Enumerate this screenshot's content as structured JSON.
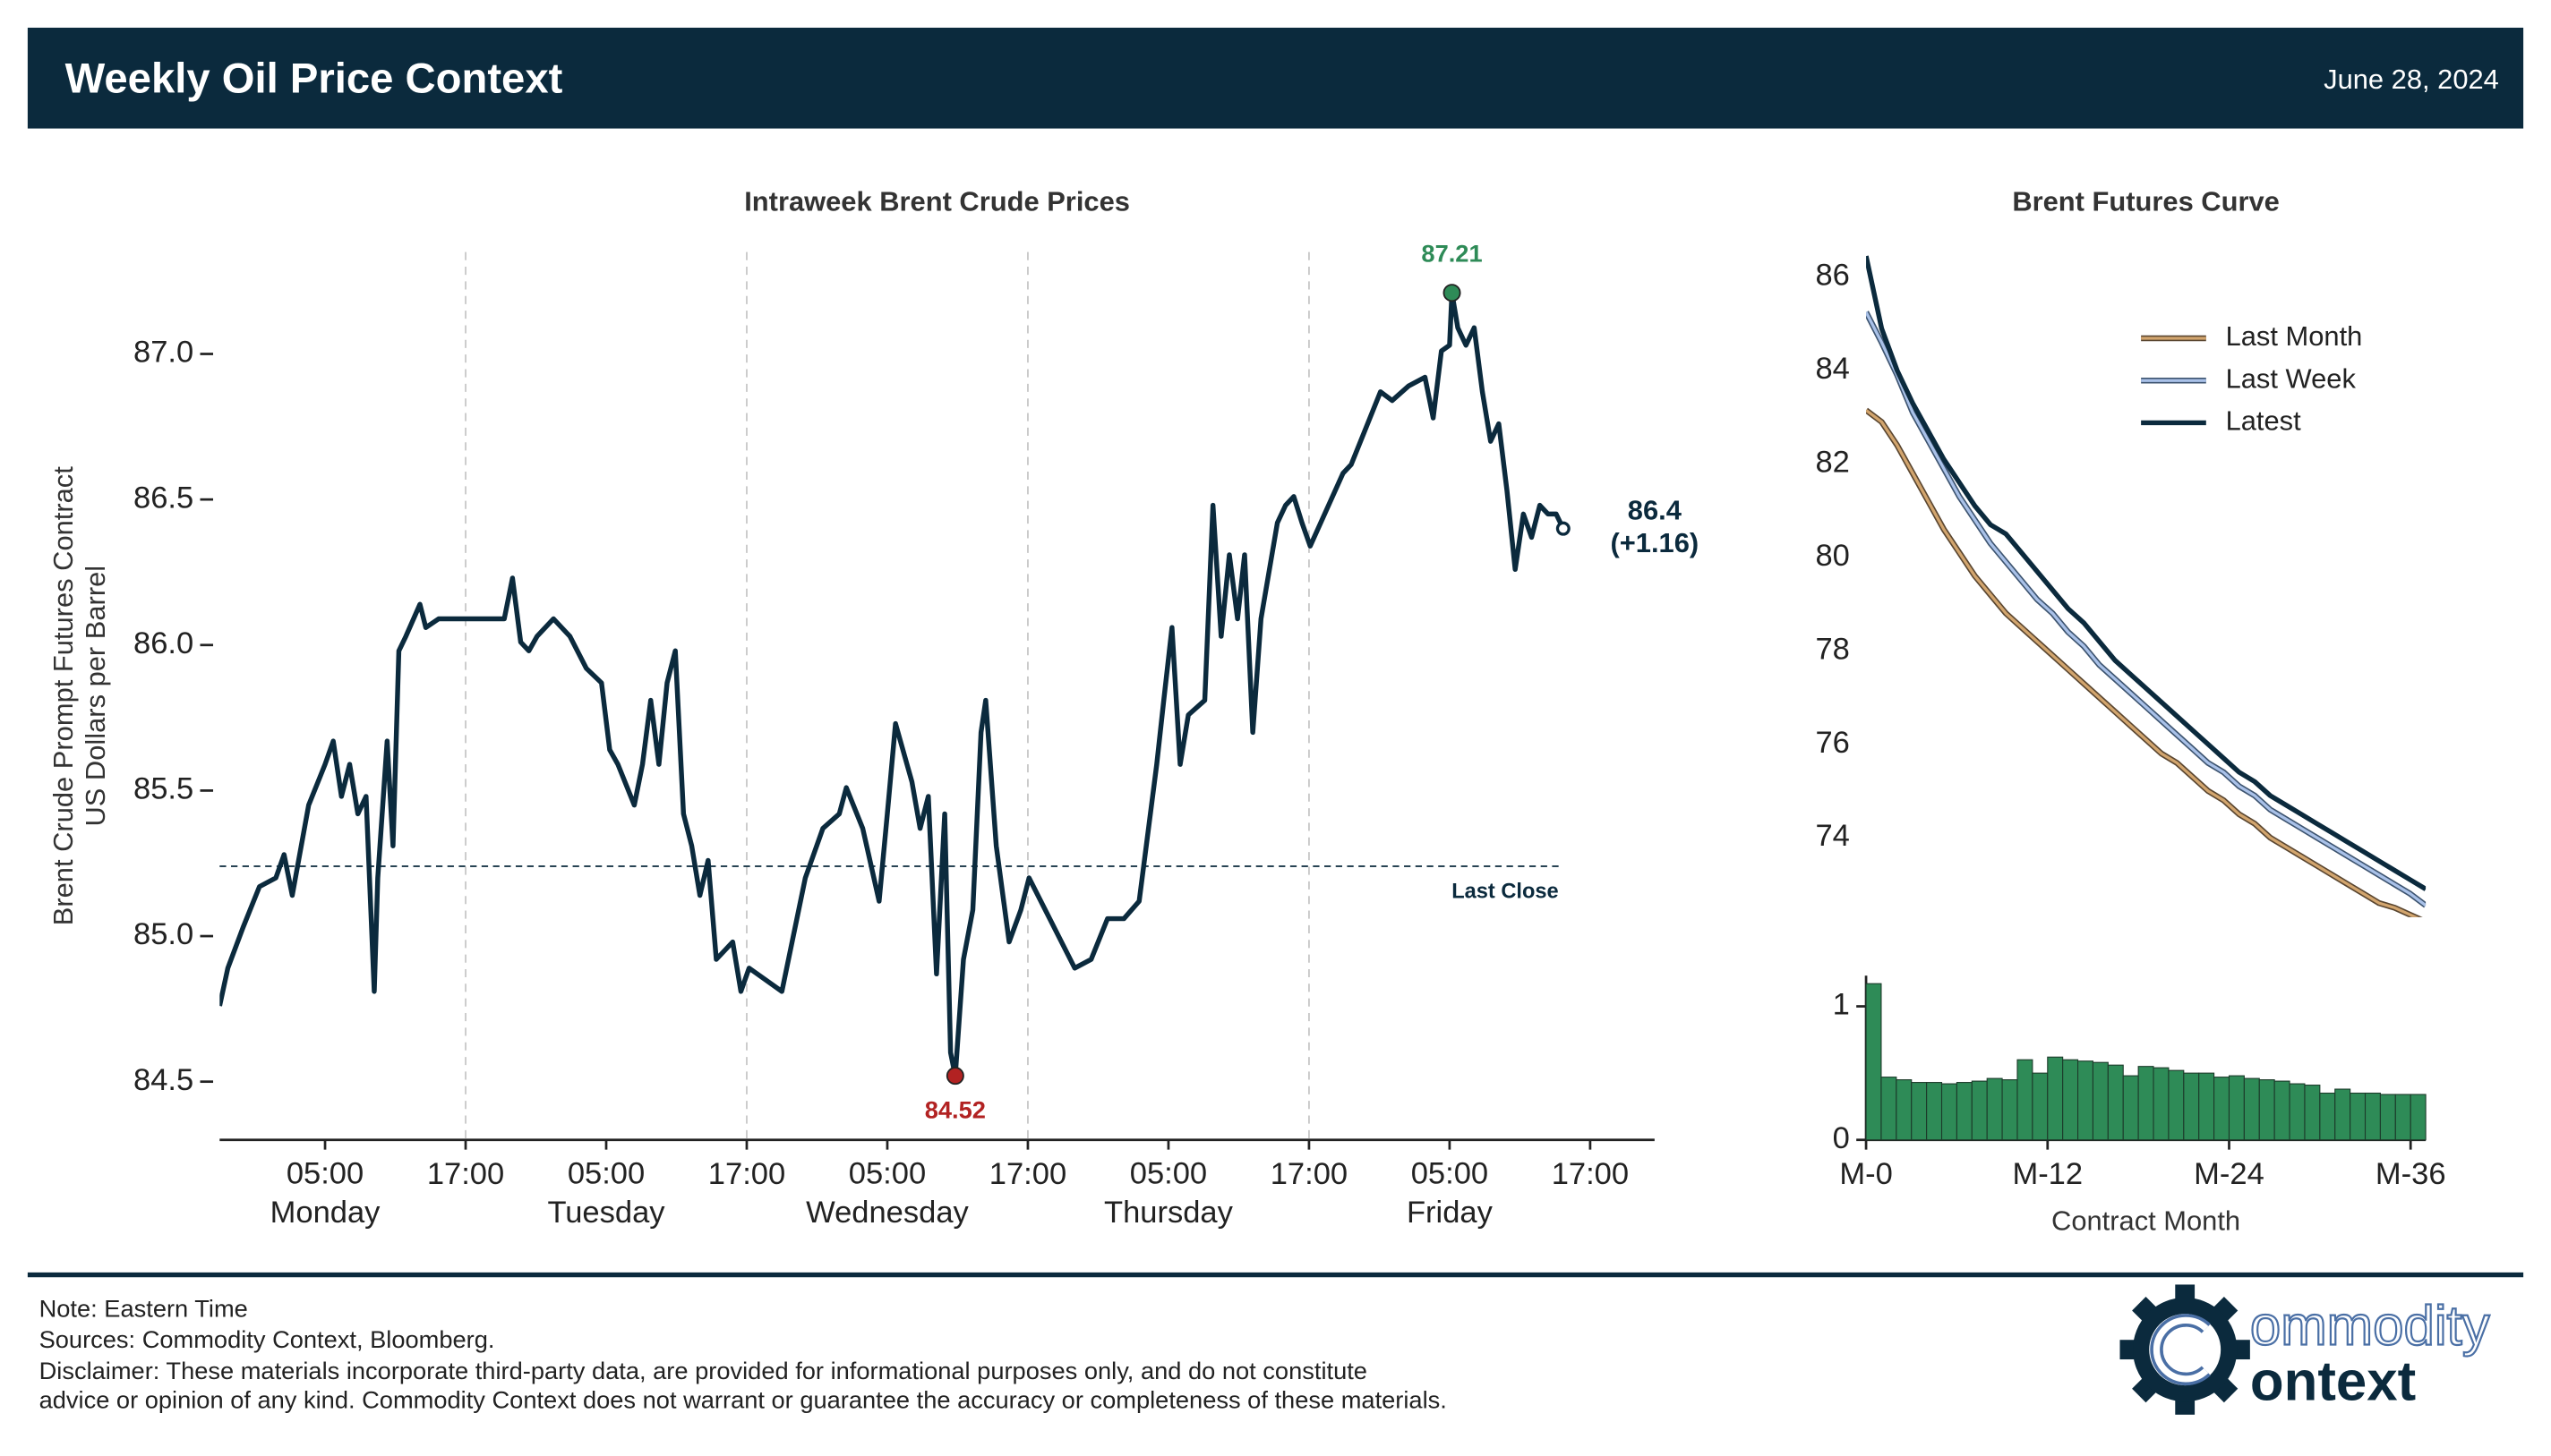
{
  "header": {
    "title": "Weekly Oil Price Context",
    "date": "June 28, 2024"
  },
  "chart_data": [
    {
      "type": "line",
      "title": "Intraweek Brent Crude Prices",
      "ylabel": [
        "Brent Crude Prompt Futures Contract",
        "US Dollars per Barrel"
      ],
      "xlim": [
        -4,
        118.5
      ],
      "ylim": [
        84.3,
        87.35
      ],
      "xticks": [
        {
          "value": 5,
          "label": "05:00\nMonday"
        },
        {
          "value": 17,
          "label": "17:00"
        },
        {
          "value": 29,
          "label": "05:00\nTuesday"
        },
        {
          "value": 41,
          "label": "17:00"
        },
        {
          "value": 53,
          "label": "05:00\nWednesday"
        },
        {
          "value": 65,
          "label": "17:00"
        },
        {
          "value": 77,
          "label": "05:00\nThursday"
        },
        {
          "value": 89,
          "label": "17:00"
        },
        {
          "value": 101,
          "label": "05:00\nFriday"
        },
        {
          "value": 113,
          "label": "17:00"
        }
      ],
      "yticks": [
        84.5,
        {
          "value": 85,
          "label": "85.0"
        },
        85.5,
        {
          "value": 86,
          "label": "86.0"
        },
        86.5,
        {
          "value": 87,
          "label": "87.0"
        }
      ],
      "vlines": [
        17,
        41,
        65,
        89
      ],
      "hline": {
        "value": 85.24,
        "label": "Last Close"
      },
      "series": [
        {
          "color": "#0b2a3d",
          "x": [
            -4.0,
            -3.3,
            -2.0,
            -0.6,
            0.8,
            1.5,
            2.2,
            3.6,
            5,
            5.7,
            6.4,
            7.1,
            7.8,
            8.5,
            9.2,
            9.5,
            10.3,
            10.8,
            11.3,
            11.9,
            13.1,
            13.6,
            14.7,
            16.8,
            20.3,
            21.0,
            21.7,
            22.4,
            23.1,
            24.5,
            25.9,
            27.3,
            28.6,
            29.3,
            30.0,
            31.4,
            32.1,
            32.8,
            33.5,
            34.2,
            34.9,
            35.6,
            36.3,
            37.0,
            37.7,
            38.4,
            39.8,
            40.5,
            41.2,
            44.0,
            46.0,
            47.5,
            48.9,
            49.5,
            50.9,
            52.3,
            53.0,
            53.7,
            55.1,
            55.8,
            56.5,
            57.2,
            57.9,
            58.4,
            58.8,
            59.5,
            60.3,
            61.0,
            61.4,
            62.3,
            63.4,
            64.4,
            65.1,
            69.0,
            70.4,
            71.8,
            73.2,
            74.5,
            76.0,
            76.6,
            77.3,
            78.0,
            78.7,
            80.1,
            80.8,
            81.5,
            82.2,
            82.9,
            83.5,
            84.2,
            84.9,
            86.3,
            87.0,
            87.7,
            88.4,
            89.1,
            91.9,
            92.6,
            94.0,
            95.1,
            96.1,
            97.5,
            98.9,
            99.6,
            100.3,
            101.0,
            101.2,
            101.7,
            102.4,
            103.1,
            103.8,
            104.5,
            105.2,
            105.9,
            106.6,
            107.3,
            108.0,
            108.7,
            109.4,
            110.1,
            110.7
          ],
          "values": [
            84.76,
            84.89,
            85.03,
            85.17,
            85.2,
            85.28,
            85.14,
            85.45,
            85.59,
            85.67,
            85.48,
            85.59,
            85.42,
            85.48,
            84.81,
            85.2,
            85.67,
            85.31,
            85.98,
            86.03,
            86.14,
            86.06,
            86.09,
            86.09,
            86.09,
            86.23,
            86.01,
            85.98,
            86.03,
            86.09,
            86.03,
            85.92,
            85.87,
            85.64,
            85.59,
            85.45,
            85.59,
            85.81,
            85.59,
            85.87,
            85.98,
            85.42,
            85.31,
            85.14,
            85.26,
            84.92,
            84.98,
            84.81,
            84.89,
            84.81,
            85.2,
            85.37,
            85.42,
            85.51,
            85.37,
            85.12,
            85.42,
            85.73,
            85.53,
            85.37,
            85.48,
            84.87,
            85.42,
            84.6,
            84.52,
            84.92,
            85.09,
            85.7,
            85.81,
            85.31,
            84.98,
            85.09,
            85.2,
            84.89,
            84.92,
            85.06,
            85.06,
            85.12,
            85.59,
            85.81,
            86.06,
            85.59,
            85.76,
            85.81,
            86.48,
            86.03,
            86.31,
            86.09,
            86.31,
            85.7,
            86.09,
            86.42,
            86.48,
            86.51,
            86.42,
            86.34,
            86.59,
            86.62,
            86.76,
            86.87,
            86.84,
            86.89,
            86.92,
            86.78,
            87.01,
            87.03,
            87.21,
            87.09,
            87.03,
            87.09,
            86.87,
            86.7,
            86.76,
            86.53,
            86.26,
            86.45,
            86.37,
            86.48,
            86.45,
            86.45,
            86.4
          ]
        }
      ],
      "annotations": [
        {
          "x": 101.2,
          "y": 87.21,
          "color": "#2e8b57",
          "position": "above"
        },
        {
          "x": 58.8,
          "y": 84.52,
          "color": "#b22222",
          "position": "below"
        }
      ],
      "last": {
        "x": 110.7,
        "y": 86.4,
        "change": "(+1.16)"
      }
    },
    {
      "type": "line",
      "title": "Brent Futures Curve",
      "legend": "upper right",
      "xlim": [
        0,
        36
      ],
      "ylim": [
        72.3,
        86.5
      ],
      "yticks": [
        74,
        76,
        78,
        80,
        82,
        84,
        86
      ],
      "series": [
        {
          "name": "Last Month",
          "color": "#d2a56e",
          "edgecolor": "#5a4630",
          "x": [
            0,
            1,
            2,
            3,
            4,
            5,
            6,
            7,
            8,
            9,
            10,
            11,
            12,
            13,
            14,
            15,
            16,
            17,
            18,
            19,
            20,
            21,
            22,
            23,
            24,
            25,
            26,
            27,
            28,
            29,
            30,
            31,
            32,
            33,
            34,
            35,
            36
          ],
          "values": [
            83.15,
            82.9,
            82.4,
            81.8,
            81.2,
            80.6,
            80.1,
            79.6,
            79.2,
            78.8,
            78.5,
            78.2,
            77.9,
            77.6,
            77.3,
            77.0,
            76.7,
            76.4,
            76.1,
            75.8,
            75.6,
            75.3,
            75.0,
            74.8,
            74.5,
            74.3,
            74.0,
            73.8,
            73.6,
            73.4,
            73.2,
            73.0,
            72.8,
            72.6,
            72.5,
            72.35,
            72.2
          ]
        },
        {
          "name": "Last Week",
          "color": "#a9c1e8",
          "edgecolor": "#3d5470",
          "x": [
            0,
            1,
            2,
            3,
            4,
            5,
            6,
            7,
            8,
            9,
            10,
            11,
            12,
            13,
            14,
            15,
            16,
            17,
            18,
            19,
            20,
            21,
            22,
            23,
            24,
            25,
            26,
            27,
            28,
            29,
            30,
            31,
            32,
            33,
            34,
            35,
            36
          ],
          "values": [
            85.25,
            84.6,
            83.9,
            83.1,
            82.5,
            81.9,
            81.3,
            80.8,
            80.3,
            79.9,
            79.5,
            79.1,
            78.8,
            78.4,
            78.1,
            77.7,
            77.4,
            77.1,
            76.8,
            76.5,
            76.2,
            75.9,
            75.6,
            75.4,
            75.1,
            74.9,
            74.6,
            74.4,
            74.2,
            74.0,
            73.8,
            73.6,
            73.4,
            73.2,
            73.0,
            72.8,
            72.55
          ]
        },
        {
          "name": "Latest",
          "color": "#0b2a3d",
          "x": [
            0,
            1,
            2,
            3,
            4,
            5,
            6,
            7,
            8,
            9,
            10,
            11,
            12,
            13,
            14,
            15,
            16,
            17,
            18,
            19,
            20,
            21,
            22,
            23,
            24,
            25,
            26,
            27,
            28,
            29,
            30,
            31,
            32,
            33,
            34,
            35,
            36
          ],
          "values": [
            86.45,
            84.9,
            84.0,
            83.3,
            82.7,
            82.1,
            81.6,
            81.1,
            80.7,
            80.5,
            80.1,
            79.7,
            79.3,
            78.9,
            78.6,
            78.2,
            77.8,
            77.5,
            77.2,
            76.9,
            76.6,
            76.3,
            76.0,
            75.7,
            75.4,
            75.2,
            74.9,
            74.7,
            74.5,
            74.3,
            74.1,
            73.9,
            73.7,
            73.5,
            73.3,
            73.1,
            72.9
          ]
        }
      ]
    },
    {
      "type": "bar",
      "xlabel": "Contract Month",
      "color": "#2e8b57",
      "edgecolor": "#1c3a2a",
      "xlim": [
        0,
        37
      ],
      "ylim": [
        0,
        1.23
      ],
      "xticks": [
        {
          "value": 0,
          "label": "M-0"
        },
        {
          "value": 12,
          "label": "M-12"
        },
        {
          "value": 24,
          "label": "M-24"
        },
        {
          "value": 36,
          "label": "M-36"
        }
      ],
      "yticks": [
        0,
        1
      ],
      "x": [
        0,
        1,
        2,
        3,
        4,
        5,
        6,
        7,
        8,
        9,
        10,
        11,
        12,
        13,
        14,
        15,
        16,
        17,
        18,
        19,
        20,
        21,
        22,
        23,
        24,
        25,
        26,
        27,
        28,
        29,
        30,
        31,
        32,
        33,
        34,
        35,
        36
      ],
      "values": [
        1.17,
        0.47,
        0.45,
        0.43,
        0.43,
        0.42,
        0.43,
        0.44,
        0.46,
        0.45,
        0.6,
        0.5,
        0.62,
        0.6,
        0.59,
        0.58,
        0.56,
        0.48,
        0.55,
        0.54,
        0.52,
        0.5,
        0.5,
        0.47,
        0.48,
        0.46,
        0.45,
        0.44,
        0.42,
        0.41,
        0.35,
        0.38,
        0.35,
        0.35,
        0.34,
        0.34,
        0.34
      ]
    }
  ],
  "footer": {
    "notes": [
      "Note: Eastern Time",
      "Sources: Commodity Context, Bloomberg.",
      "Disclaimer: These materials incorporate third-party data, are provided for informational purposes only, and do not constitute",
      "advice or opinion of any kind. Commodity Context does not warrant or guarantee the accuracy or completeness of these materials."
    ]
  },
  "logo": {
    "line1": "ommodity",
    "line2": "ontext"
  }
}
